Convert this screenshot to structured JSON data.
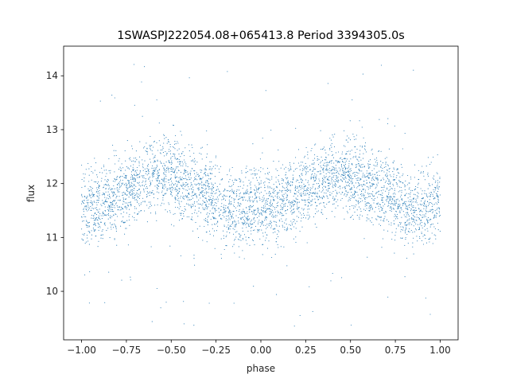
{
  "chart_data": {
    "type": "scatter",
    "title": "1SWASPJ222054.08+065413.8 Period 3394305.0s",
    "xlabel": "phase",
    "ylabel": "flux",
    "xlim": [
      -1.1,
      1.1
    ],
    "ylim": [
      9.1,
      14.55
    ],
    "xticks": [
      -1.0,
      -0.75,
      -0.5,
      -0.25,
      0.0,
      0.25,
      0.5,
      0.75,
      1.0
    ],
    "xtick_labels": [
      "−1.00",
      "−0.75",
      "−0.50",
      "−0.25",
      "0.00",
      "0.25",
      "0.50",
      "0.75",
      "1.00"
    ],
    "yticks": [
      10,
      11,
      12,
      13,
      14
    ],
    "ytick_labels": [
      "10",
      "11",
      "12",
      "13",
      "14"
    ],
    "grid": false,
    "marker_color": "#1f77b4",
    "phase_range": [
      -1.0,
      1.0
    ],
    "profile": {
      "phase": [
        0.0,
        0.05,
        0.1,
        0.15,
        0.2,
        0.25,
        0.3,
        0.35,
        0.4,
        0.45,
        0.5,
        0.55,
        0.6,
        0.65,
        0.7,
        0.75,
        0.8,
        0.85,
        0.9,
        0.95,
        1.0
      ],
      "median_flux": [
        11.55,
        11.55,
        11.6,
        11.7,
        11.8,
        11.85,
        11.95,
        12.1,
        12.15,
        12.2,
        12.15,
        12.05,
        11.95,
        11.9,
        11.85,
        11.7,
        11.55,
        11.5,
        11.5,
        11.6,
        11.75
      ],
      "spread": 0.35
    },
    "outlier_range": [
      9.35,
      14.3
    ]
  }
}
